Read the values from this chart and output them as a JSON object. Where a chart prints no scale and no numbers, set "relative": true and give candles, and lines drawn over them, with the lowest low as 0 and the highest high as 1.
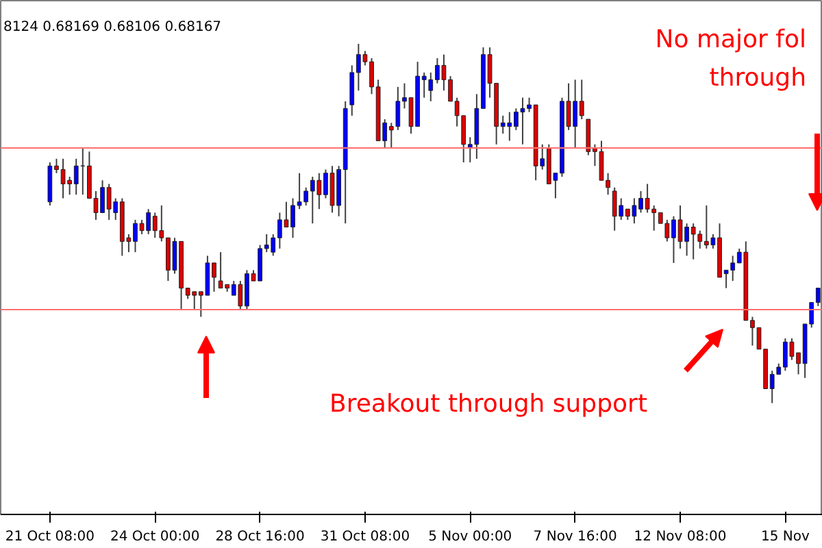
{
  "chart_data": {
    "type": "candlestick",
    "relative": true,
    "grid": false,
    "tick_labels": "x",
    "categories": [
      "21 Oct 08:00",
      null,
      null,
      null,
      null,
      null,
      null,
      null,
      null,
      null,
      null,
      null,
      null,
      null,
      null,
      null,
      "24 Oct 00:00",
      null,
      null,
      null,
      null,
      null,
      null,
      null,
      null,
      null,
      null,
      null,
      null,
      null,
      null,
      null,
      "28 Oct 16:00",
      null,
      null,
      null,
      null,
      null,
      null,
      null,
      null,
      null,
      null,
      null,
      null,
      null,
      null,
      null,
      "31 Oct 08:00",
      null,
      null,
      null,
      null,
      null,
      null,
      null,
      null,
      null,
      null,
      null,
      null,
      null,
      null,
      null,
      "5 Nov 00:00",
      null,
      null,
      null,
      null,
      null,
      null,
      null,
      null,
      null,
      null,
      null,
      null,
      null,
      null,
      null,
      "7 Nov 16:00",
      null,
      null,
      null,
      null,
      null,
      null,
      null,
      null,
      null,
      null,
      null,
      null,
      null,
      null,
      null,
      "12 Nov 08:00",
      null,
      null,
      null,
      null,
      null,
      null,
      null,
      null,
      null,
      null,
      null,
      null,
      null,
      null,
      null,
      "15 Nov",
      null,
      null,
      null,
      null,
      null
    ],
    "ohlc": [
      [
        0.56,
        0.67,
        0.55,
        0.66
      ],
      [
        0.66,
        0.68,
        0.64,
        0.65
      ],
      [
        0.65,
        0.68,
        0.57,
        0.61
      ],
      [
        0.62,
        0.63,
        0.58,
        0.61
      ],
      [
        0.61,
        0.68,
        0.58,
        0.66
      ],
      [
        0.66,
        0.71,
        0.58,
        0.66
      ],
      [
        0.66,
        0.7,
        0.57,
        0.57
      ],
      [
        0.57,
        0.59,
        0.51,
        0.53
      ],
      [
        0.53,
        0.62,
        0.53,
        0.6
      ],
      [
        0.6,
        0.61,
        0.51,
        0.54
      ],
      [
        0.53,
        0.57,
        0.51,
        0.56
      ],
      [
        0.56,
        0.57,
        0.41,
        0.45
      ],
      [
        0.46,
        0.47,
        0.42,
        0.45
      ],
      [
        0.45,
        0.51,
        0.42,
        0.5
      ],
      [
        0.5,
        0.51,
        0.47,
        0.48
      ],
      [
        0.48,
        0.54,
        0.47,
        0.53
      ],
      [
        0.52,
        0.53,
        0.46,
        0.48
      ],
      [
        0.48,
        0.55,
        0.45,
        0.46
      ],
      [
        0.46,
        0.46,
        0.34,
        0.37
      ],
      [
        0.37,
        0.46,
        0.36,
        0.45
      ],
      [
        0.45,
        0.45,
        0.26,
        0.32
      ],
      [
        0.32,
        0.32,
        0.29,
        0.3
      ],
      [
        0.31,
        0.31,
        0.26,
        0.3
      ],
      [
        0.31,
        0.31,
        0.24,
        0.3
      ],
      [
        0.3,
        0.41,
        0.3,
        0.39
      ],
      [
        0.39,
        0.39,
        0.31,
        0.35
      ],
      [
        0.34,
        0.42,
        0.32,
        0.32
      ],
      [
        0.33,
        0.33,
        0.31,
        0.32
      ],
      [
        0.3,
        0.34,
        0.3,
        0.33
      ],
      [
        0.33,
        0.34,
        0.26,
        0.27
      ],
      [
        0.27,
        0.37,
        0.26,
        0.36
      ],
      [
        0.36,
        0.37,
        0.34,
        0.34
      ],
      [
        0.34,
        0.44,
        0.34,
        0.43
      ],
      [
        0.43,
        0.47,
        0.42,
        0.44
      ],
      [
        0.42,
        0.47,
        0.41,
        0.46
      ],
      [
        0.46,
        0.53,
        0.43,
        0.51
      ],
      [
        0.51,
        0.56,
        0.49,
        0.49
      ],
      [
        0.49,
        0.57,
        0.46,
        0.55
      ],
      [
        0.55,
        0.64,
        0.54,
        0.56
      ],
      [
        0.56,
        0.6,
        0.55,
        0.59
      ],
      [
        0.59,
        0.63,
        0.5,
        0.62
      ],
      [
        0.62,
        0.64,
        0.54,
        0.58
      ],
      [
        0.58,
        0.65,
        0.57,
        0.64
      ],
      [
        0.64,
        0.66,
        0.53,
        0.55
      ],
      [
        0.55,
        0.66,
        0.52,
        0.65
      ],
      [
        0.65,
        0.84,
        0.5,
        0.82
      ],
      [
        0.83,
        0.94,
        0.8,
        0.92
      ],
      [
        0.92,
        1.0,
        0.87,
        0.97
      ],
      [
        0.97,
        0.98,
        0.94,
        0.95
      ],
      [
        0.95,
        0.96,
        0.86,
        0.88
      ],
      [
        0.88,
        0.9,
        0.73,
        0.73
      ],
      [
        0.73,
        0.79,
        0.71,
        0.78
      ],
      [
        0.77,
        0.78,
        0.71,
        0.76
      ],
      [
        0.77,
        0.88,
        0.76,
        0.84
      ],
      [
        0.84,
        0.89,
        0.82,
        0.85
      ],
      [
        0.85,
        0.85,
        0.75,
        0.77
      ],
      [
        0.77,
        0.95,
        0.77,
        0.91
      ],
      [
        0.9,
        0.92,
        0.85,
        0.91
      ],
      [
        0.87,
        0.92,
        0.84,
        0.9
      ],
      [
        0.9,
        0.96,
        0.89,
        0.94
      ],
      [
        0.94,
        0.97,
        0.87,
        0.9
      ],
      [
        0.9,
        0.91,
        0.84,
        0.84
      ],
      [
        0.84,
        0.85,
        0.77,
        0.8
      ],
      [
        0.8,
        0.8,
        0.67,
        0.72
      ],
      [
        0.71,
        0.74,
        0.67,
        0.72
      ],
      [
        0.72,
        0.86,
        0.68,
        0.82
      ],
      [
        0.82,
        0.99,
        0.82,
        0.97
      ],
      [
        0.97,
        0.99,
        0.85,
        0.89
      ],
      [
        0.89,
        0.89,
        0.72,
        0.77
      ],
      [
        0.77,
        0.8,
        0.75,
        0.78
      ],
      [
        0.77,
        0.81,
        0.73,
        0.78
      ],
      [
        0.77,
        0.82,
        0.76,
        0.81
      ],
      [
        0.81,
        0.85,
        0.72,
        0.82
      ],
      [
        0.82,
        0.85,
        0.81,
        0.83
      ],
      [
        0.83,
        0.83,
        0.62,
        0.66
      ],
      [
        0.66,
        0.72,
        0.65,
        0.68
      ],
      [
        0.71,
        0.72,
        0.61,
        0.61
      ],
      [
        0.62,
        0.64,
        0.57,
        0.64
      ],
      [
        0.64,
        0.85,
        0.63,
        0.84
      ],
      [
        0.84,
        0.89,
        0.76,
        0.77
      ],
      [
        0.77,
        0.9,
        0.71,
        0.84
      ],
      [
        0.84,
        0.9,
        0.79,
        0.8
      ],
      [
        0.79,
        0.79,
        0.69,
        0.7
      ],
      [
        0.71,
        0.72,
        0.66,
        0.7
      ],
      [
        0.7,
        0.73,
        0.62,
        0.62
      ],
      [
        0.62,
        0.64,
        0.58,
        0.6
      ],
      [
        0.59,
        0.6,
        0.48,
        0.52
      ],
      [
        0.52,
        0.57,
        0.51,
        0.55
      ],
      [
        0.54,
        0.54,
        0.51,
        0.52
      ],
      [
        0.52,
        0.57,
        0.5,
        0.55
      ],
      [
        0.54,
        0.59,
        0.53,
        0.57
      ],
      [
        0.57,
        0.61,
        0.53,
        0.54
      ],
      [
        0.54,
        0.55,
        0.48,
        0.53
      ],
      [
        0.53,
        0.53,
        0.5,
        0.5
      ],
      [
        0.5,
        0.51,
        0.45,
        0.46
      ],
      [
        0.46,
        0.52,
        0.39,
        0.51
      ],
      [
        0.51,
        0.55,
        0.43,
        0.45
      ],
      [
        0.45,
        0.5,
        0.41,
        0.49
      ],
      [
        0.49,
        0.5,
        0.4,
        0.47
      ],
      [
        0.47,
        0.48,
        0.43,
        0.45
      ],
      [
        0.45,
        0.55,
        0.43,
        0.44
      ],
      [
        0.44,
        0.47,
        0.43,
        0.46
      ],
      [
        0.46,
        0.5,
        0.35,
        0.35
      ],
      [
        0.36,
        0.37,
        0.32,
        0.37
      ],
      [
        0.37,
        0.41,
        0.34,
        0.39
      ],
      [
        0.39,
        0.43,
        0.39,
        0.42
      ],
      [
        0.42,
        0.45,
        0.23,
        0.23
      ],
      [
        0.23,
        0.24,
        0.16,
        0.21
      ],
      [
        0.21,
        0.21,
        0.15,
        0.15
      ],
      [
        0.15,
        0.15,
        0.04,
        0.04
      ],
      [
        0.04,
        0.09,
        0.0,
        0.08
      ],
      [
        0.08,
        0.11,
        0.08,
        0.1
      ],
      [
        0.1,
        0.18,
        0.09,
        0.17
      ],
      [
        0.17,
        0.18,
        0.12,
        0.13
      ],
      [
        0.14,
        0.14,
        0.08,
        0.11
      ],
      [
        0.11,
        0.22,
        0.07,
        0.22
      ],
      [
        0.22,
        0.28,
        0.21,
        0.28
      ],
      [
        0.28,
        0.32,
        0.27,
        0.32
      ]
    ],
    "ref_lines": [
      {
        "axis": "y",
        "value": 0.71,
        "color": "#ff7070"
      },
      {
        "axis": "y",
        "value": 0.26,
        "color": "#ff7070"
      }
    ],
    "annotations": [
      "8124 0.68169 0.68106 0.68167",
      "No major fol",
      "through",
      "Breakout through support"
    ]
  }
}
